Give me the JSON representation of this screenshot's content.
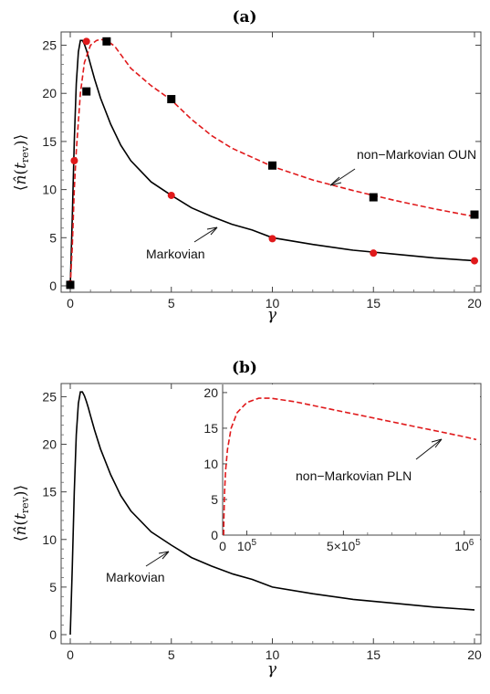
{
  "chart_data": [
    {
      "panel": "(a)",
      "type": "line",
      "xlabel": "γ",
      "ylabel": "⟨n̂(t_rev)⟩",
      "xlim": [
        0,
        20
      ],
      "ylim": [
        0,
        26
      ],
      "xticks": [
        0,
        5,
        10,
        15,
        20
      ],
      "yticks": [
        0,
        5,
        10,
        15,
        20,
        25
      ],
      "grid": false,
      "series": [
        {
          "name": "Markovian",
          "style": "solid",
          "color": "#000000",
          "x": [
            0,
            0.1,
            0.2,
            0.3,
            0.4,
            0.5,
            0.6,
            0.7,
            0.8,
            0.9,
            1.0,
            1.2,
            1.5,
            2,
            2.5,
            3,
            4,
            5,
            6,
            7,
            8,
            9,
            10,
            12,
            14,
            16,
            18,
            20
          ],
          "values": [
            0,
            7,
            15,
            21,
            24.3,
            25.5,
            25.5,
            25.1,
            24.5,
            23.8,
            23.0,
            21.5,
            19.5,
            16.8,
            14.6,
            13.0,
            10.8,
            9.4,
            8.1,
            7.2,
            6.4,
            5.8,
            5.0,
            4.3,
            3.7,
            3.3,
            2.9,
            2.6
          ]
        },
        {
          "name": "non-Markovian OUN",
          "style": "dashed",
          "color": "#e0191b",
          "x": [
            0,
            0.1,
            0.2,
            0.3,
            0.5,
            0.7,
            1.0,
            1.3,
            1.5,
            1.8,
            2.2,
            3,
            4,
            5,
            6,
            7,
            8,
            10,
            12,
            14,
            16,
            18,
            20
          ],
          "values": [
            0,
            4,
            10,
            14,
            20,
            23.2,
            25.0,
            25.5,
            25.6,
            25.5,
            24.9,
            22.6,
            20.8,
            19.3,
            17.3,
            15.6,
            14.3,
            12.4,
            11.0,
            9.9,
            8.9,
            8.0,
            7.2
          ]
        }
      ],
      "markers": [
        {
          "name": "red-circles",
          "shape": "circle",
          "color": "#e0191b",
          "x": [
            0,
            0.2,
            0.8,
            5,
            10,
            15,
            20
          ],
          "values": [
            0.2,
            13.0,
            25.4,
            9.4,
            4.9,
            3.4,
            2.6
          ]
        },
        {
          "name": "black-squares",
          "shape": "square",
          "color": "#000000",
          "x": [
            0,
            0.8,
            1.8,
            5,
            10,
            15,
            20
          ],
          "values": [
            0.1,
            20.2,
            25.4,
            19.4,
            12.5,
            9.2,
            7.4
          ]
        }
      ],
      "annotations": [
        {
          "text": "non−Markovian OUN",
          "arrow_to": [
            12.3,
            10.8
          ]
        },
        {
          "text": "Markovian",
          "arrow_to": [
            7.5,
            6.8
          ]
        }
      ]
    },
    {
      "panel": "(b)",
      "type": "line",
      "xlabel": "γ",
      "ylabel": "⟨n̂(t_rev)⟩",
      "xlim": [
        0,
        20
      ],
      "ylim": [
        0,
        26
      ],
      "xticks": [
        0,
        5,
        10,
        15,
        20
      ],
      "yticks": [
        0,
        5,
        10,
        15,
        20,
        25
      ],
      "grid": false,
      "series": [
        {
          "name": "Markovian",
          "style": "solid",
          "color": "#000000",
          "x": [
            0,
            0.1,
            0.2,
            0.3,
            0.4,
            0.5,
            0.6,
            0.7,
            0.8,
            0.9,
            1.0,
            1.2,
            1.5,
            2,
            2.5,
            3,
            4,
            5,
            6,
            7,
            8,
            9,
            10,
            12,
            14,
            16,
            18,
            20
          ],
          "values": [
            0,
            7,
            15,
            21,
            24.3,
            25.5,
            25.5,
            25.1,
            24.5,
            23.8,
            23.0,
            21.5,
            19.5,
            16.8,
            14.6,
            13.0,
            10.8,
            9.4,
            8.1,
            7.2,
            6.4,
            5.8,
            5.0,
            4.3,
            3.7,
            3.3,
            2.9,
            2.6
          ]
        }
      ],
      "annotations": [
        {
          "text": "Markovian",
          "arrow_to": [
            5.3,
            10.1
          ]
        }
      ],
      "inset": {
        "type": "line",
        "xlim": [
          0,
          1050000
        ],
        "ylim": [
          0,
          20.5
        ],
        "xticks": [
          {
            "v": 0,
            "label": "0"
          },
          {
            "v": 100000,
            "label": "10",
            "exp": "5"
          },
          {
            "v": 500000,
            "label": "5×10",
            "exp": "5"
          },
          {
            "v": 1000000,
            "label": "10",
            "exp": "6"
          }
        ],
        "yticks": [
          0,
          5,
          10,
          15,
          20
        ],
        "series": [
          {
            "name": "non-Markovian PLN",
            "style": "dashed",
            "color": "#e0191b",
            "x": [
              4000,
              5000,
              8000,
              12000,
              20000,
              35000,
              60000,
              100000,
              150000,
              200000,
              300000,
              400000,
              500000,
              600000,
              700000,
              800000,
              900000,
              1000000,
              1050000
            ],
            "values": [
              0,
              2,
              6,
              9,
              12,
              15,
              17.2,
              18.6,
              19.2,
              19.2,
              18.7,
              18.0,
              17.3,
              16.6,
              15.9,
              15.2,
              14.5,
              13.8,
              13.4
            ]
          }
        ],
        "annotations": [
          {
            "text": "non−Markovian PLN",
            "arrow_to": [
              880000,
              14.6
            ]
          }
        ]
      }
    }
  ]
}
